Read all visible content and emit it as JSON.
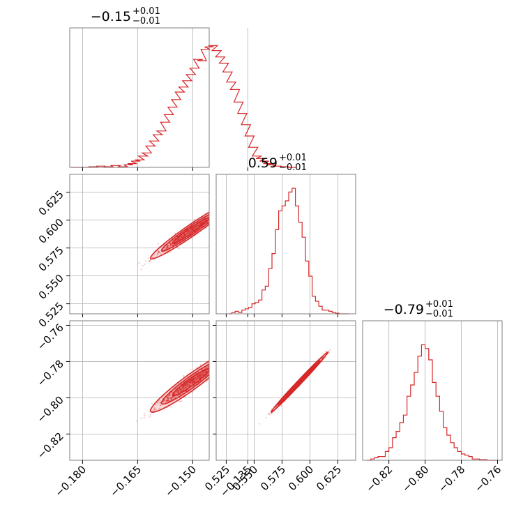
{
  "chart_data": {
    "type": "corner",
    "color": "#d62728",
    "grid": true,
    "parameters": [
      {
        "median": "−0.15",
        "plus": "+0.01",
        "minus": "−0.01",
        "range": [
          -0.1835,
          -0.1455
        ],
        "ticks": [
          -0.18,
          -0.165,
          -0.15,
          -0.135
        ],
        "tick_labels": [
          "−0.180",
          "−0.165",
          "−0.150",
          "−0.135"
        ],
        "hist_x": [
          -0.182,
          -0.1795,
          -0.177,
          -0.175,
          -0.173,
          -0.171,
          -0.169,
          -0.1675,
          -0.1665,
          -0.1655,
          -0.1645,
          -0.1635,
          -0.1625,
          -0.1615,
          -0.1605,
          -0.1595,
          -0.1585,
          -0.1575,
          -0.1565,
          -0.1555,
          -0.1545,
          -0.1535,
          -0.1525,
          -0.1515,
          -0.1505,
          -0.1495,
          -0.1485,
          -0.1475,
          -0.1465,
          -0.1455,
          -0.1445,
          -0.1435,
          -0.1425,
          -0.1415,
          -0.1405,
          -0.1395,
          -0.1385,
          -0.1375,
          -0.1365,
          -0.1355,
          -0.1345,
          -0.1335,
          -0.1325,
          -0.1315,
          -0.1305,
          -0.1295,
          -0.1285,
          -0.127,
          -0.125,
          -0.123
        ],
        "hist_y": [
          0.0,
          0.0,
          0.005,
          0.01,
          0.005,
          0.015,
          0.005,
          0.02,
          0.03,
          0.05,
          0.06,
          0.09,
          0.115,
          0.17,
          0.21,
          0.26,
          0.29,
          0.36,
          0.42,
          0.48,
          0.54,
          0.6,
          0.64,
          0.69,
          0.74,
          0.79,
          0.86,
          0.85,
          0.94,
          0.96,
          0.97,
          0.93,
          0.88,
          0.83,
          0.76,
          0.68,
          0.62,
          0.52,
          0.43,
          0.34,
          0.25,
          0.16,
          0.09,
          0.07,
          0.05,
          0.03,
          0.02,
          0.01,
          0.005,
          0.0
        ]
      },
      {
        "median": "0.59",
        "plus": "+0.01",
        "minus": "−0.01",
        "range": [
          0.516,
          0.641
        ],
        "ticks": [
          0.525,
          0.55,
          0.575,
          0.6,
          0.625
        ],
        "tick_labels": [
          "0.525",
          "0.550",
          "0.575",
          "0.600",
          "0.625"
        ],
        "hist_x": [
          0.5285,
          0.5315,
          0.5345,
          0.5375,
          0.5405,
          0.5435,
          0.5465,
          0.5495,
          0.5525,
          0.5555,
          0.5585,
          0.5615,
          0.5645,
          0.5675,
          0.5705,
          0.5735,
          0.5765,
          0.5795,
          0.5825,
          0.5855,
          0.5885,
          0.5915,
          0.5945,
          0.5975,
          0.6005,
          0.6035,
          0.6065,
          0.6095,
          0.6125,
          0.6155,
          0.6185,
          0.6215,
          0.6245,
          0.6275,
          0.6305,
          0.6335
        ],
        "hist_y": [
          0.0,
          0.01,
          0.02,
          0.01,
          0.03,
          0.04,
          0.05,
          0.08,
          0.09,
          0.11,
          0.19,
          0.22,
          0.36,
          0.48,
          0.67,
          0.82,
          0.86,
          0.9,
          0.97,
          1.0,
          0.86,
          0.73,
          0.61,
          0.42,
          0.3,
          0.14,
          0.1,
          0.06,
          0.03,
          0.03,
          0.02,
          0.01,
          0.005,
          0.0,
          0.0,
          0.0
        ]
      },
      {
        "median": "−0.79",
        "plus": "+0.01",
        "minus": "−0.01",
        "range": [
          -0.8345,
          -0.7575
        ],
        "ticks": [
          -0.82,
          -0.8,
          -0.78,
          -0.76
        ],
        "tick_labels": [
          "−0.82",
          "−0.80",
          "−0.78",
          "−0.76"
        ],
        "hist_x": [
          -0.831,
          -0.829,
          -0.827,
          -0.825,
          -0.823,
          -0.821,
          -0.819,
          -0.817,
          -0.815,
          -0.813,
          -0.811,
          -0.809,
          -0.807,
          -0.805,
          -0.803,
          -0.801,
          -0.799,
          -0.797,
          -0.795,
          -0.793,
          -0.791,
          -0.789,
          -0.787,
          -0.785,
          -0.783,
          -0.781,
          -0.779,
          -0.777,
          -0.775,
          -0.773,
          -0.771,
          -0.769,
          -0.767,
          -0.765,
          -0.763,
          -0.761
        ],
        "hist_y": [
          0.0,
          0.01,
          0.02,
          0.03,
          0.03,
          0.07,
          0.1,
          0.18,
          0.23,
          0.3,
          0.36,
          0.51,
          0.6,
          0.7,
          0.83,
          0.92,
          0.89,
          0.8,
          0.62,
          0.51,
          0.39,
          0.26,
          0.2,
          0.14,
          0.1,
          0.07,
          0.05,
          0.04,
          0.03,
          0.01,
          0.01,
          0.005,
          0.005,
          0.0,
          0.0,
          0.0
        ]
      }
    ],
    "pairs": [
      {
        "row": 1,
        "col": 0,
        "center": [
          -0.1505,
          0.5905
        ],
        "sigma": [
          0.005,
          0.0115
        ],
        "rho": 0.97,
        "n": 500,
        "seed": 11
      },
      {
        "row": 2,
        "col": 0,
        "center": [
          -0.1505,
          -0.7915
        ],
        "sigma": [
          0.005,
          0.0075
        ],
        "rho": 0.95,
        "n": 500,
        "seed": 23
      },
      {
        "row": 2,
        "col": 1,
        "center": [
          0.5905,
          -0.7915
        ],
        "sigma": [
          0.0115,
          0.0075
        ],
        "rho": 0.995,
        "n": 500,
        "seed": 37
      }
    ],
    "contour_levels": [
      1.0,
      1.6,
      2.2
    ]
  }
}
